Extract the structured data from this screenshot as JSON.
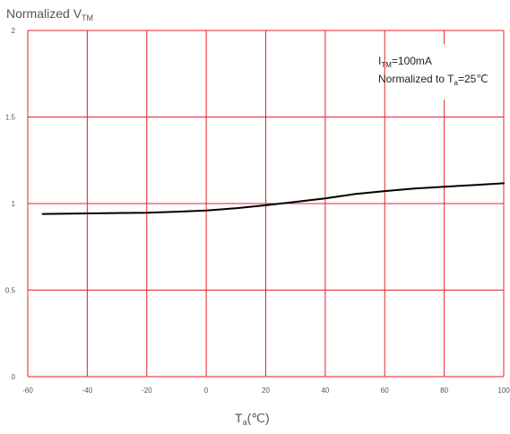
{
  "chart_data": {
    "type": "line",
    "ylabel": {
      "main": "Normalized V",
      "sub": "TM"
    },
    "xlabel": {
      "main": "T",
      "sub": "a",
      "suffix": "(℃)"
    },
    "annotations": [
      {
        "pre": "I",
        "sub": "TM",
        "post": "=100mA"
      },
      {
        "pre": "Normalized to T",
        "sub": "a",
        "post": "=25℃"
      }
    ],
    "xlim": [
      -60,
      100
    ],
    "ylim": [
      0,
      2
    ],
    "x_ticks": [
      -60,
      -40,
      -20,
      0,
      20,
      40,
      60,
      80,
      100
    ],
    "x_tick_labels": [
      "-60",
      "-40",
      "-20",
      "0",
      "20",
      "40",
      "60",
      "80",
      "100"
    ],
    "y_ticks": [
      0,
      0.5,
      1,
      1.5,
      2
    ],
    "y_tick_labels": [
      "0",
      "0.5",
      "1",
      "1.5",
      "2"
    ],
    "grid": true,
    "grid_color": "#e8202a",
    "line_color": "#000000",
    "series": [
      {
        "x": [
          -55,
          -40,
          -20,
          -10,
          0,
          10,
          20,
          25,
          30,
          40,
          50,
          60,
          70,
          80,
          90,
          100
        ],
        "y": [
          0.94,
          0.943,
          0.947,
          0.953,
          0.96,
          0.973,
          0.99,
          1.0,
          1.01,
          1.03,
          1.055,
          1.072,
          1.087,
          1.097,
          1.107,
          1.117
        ]
      }
    ]
  }
}
